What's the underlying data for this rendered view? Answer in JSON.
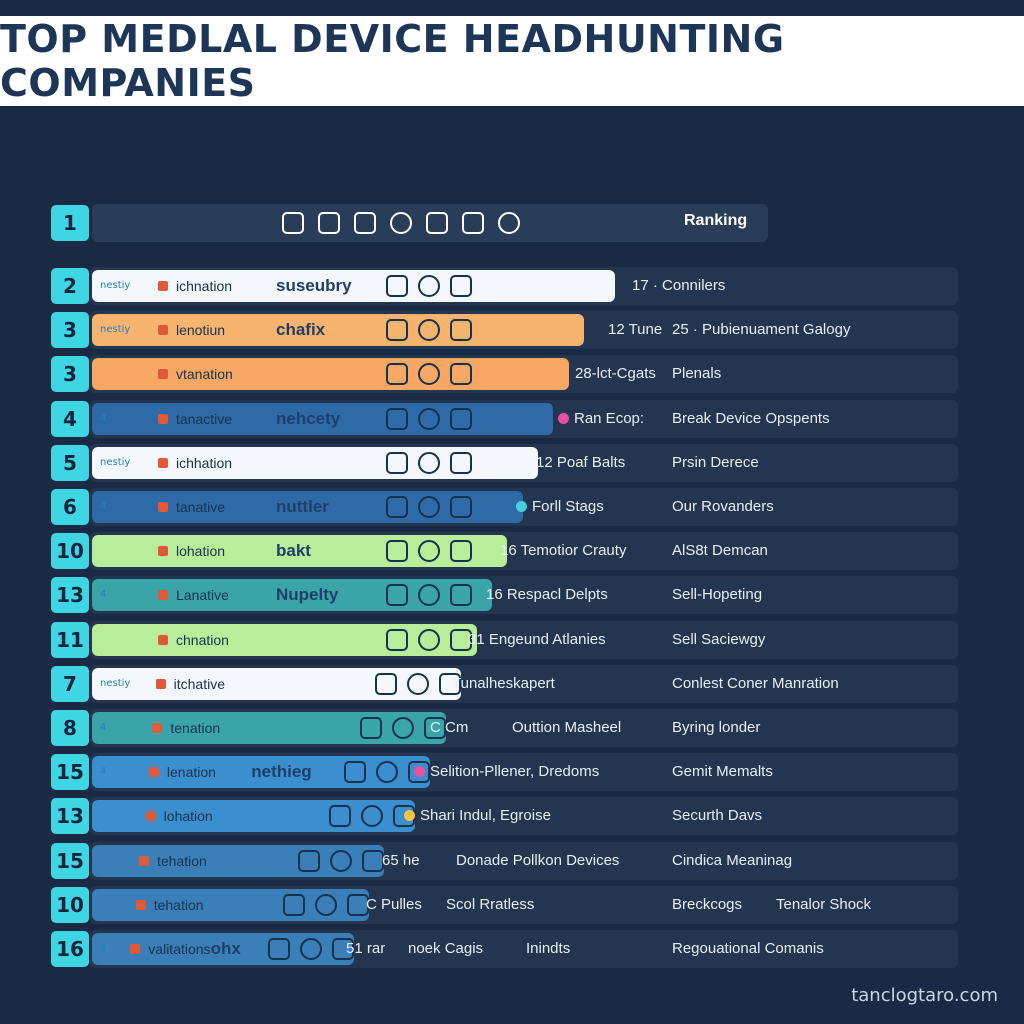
{
  "title": "Top Medlal Device Headhunting Companies",
  "header_row": {
    "rank": "1",
    "label": "Ranking"
  },
  "watermark": "tanclogtaro.com",
  "chart_data": {
    "type": "bar",
    "title": "Top Medlal Device Headhunting Companies",
    "series_colors": {
      "white": "#f4f7fb",
      "orange": "#f7b46f",
      "navy": "#2f6aa8",
      "green": "#b8ee9a",
      "teal": "#3aa5a8",
      "blue": "#3b8fcf",
      "lightblue": "#3b7fb8"
    },
    "rows": [
      {
        "rank": "2",
        "brand": "nestiy",
        "label1": "ichnation",
        "label2": "suseubry",
        "color": "#f4f7fb",
        "value": 17,
        "texts": [
          "17 · Connilers"
        ]
      },
      {
        "rank": "3",
        "brand": "nestiy",
        "label1": "lenotiun",
        "label2": "chafix",
        "color": "#f7b46f",
        "value": 16,
        "texts": [
          "12 Tune",
          "25 · Pubienuament Galogy"
        ]
      },
      {
        "rank": "3",
        "brand": "",
        "label1": "vtanation",
        "label2": "",
        "color": "#f7a864",
        "value": 15.5,
        "texts": [
          "28-lct-Cgats",
          "Plenals"
        ]
      },
      {
        "rank": "4",
        "brand": "4",
        "label1": "tanactive",
        "label2": "nehcety",
        "color": "#2f6aa8",
        "value": 15,
        "texts": [
          "Ran Ecop:",
          "Break Device Opspents"
        ]
      },
      {
        "rank": "5",
        "brand": "nestiy",
        "label1": "ichhation",
        "label2": "",
        "color": "#f4f7fb",
        "value": 14.5,
        "texts": [
          "12 Poaf Balts",
          "Prsin Derece"
        ]
      },
      {
        "rank": "6",
        "brand": "4",
        "label1": "tanative",
        "label2": "nuttler",
        "color": "#2f6aa8",
        "value": 14,
        "texts": [
          "Forll Stags",
          "Our Rovanders"
        ]
      },
      {
        "rank": "10",
        "brand": "",
        "label1": "lohation",
        "label2": "bakt",
        "color": "#b8ee9a",
        "value": 13.5,
        "texts": [
          "16 Temotior Crauty",
          "AlS8t Demcan"
        ]
      },
      {
        "rank": "13",
        "brand": "4",
        "label1": "Lanative",
        "label2": "Nupelty",
        "color": "#3aa5a8",
        "value": 13,
        "texts": [
          "16 Respacl Delpts",
          "Sell-Hopeting"
        ]
      },
      {
        "rank": "11",
        "brand": "",
        "label1": "chnation",
        "label2": "",
        "color": "#b8ee9a",
        "value": 12.5,
        "texts": [
          "31 Engeund Atlanies",
          "Sell Saciewgy"
        ]
      },
      {
        "rank": "7",
        "brand": "nestiy",
        "label1": "itchative",
        "label2": "",
        "color": "#f4f7fb",
        "value": 12,
        "texts": [
          "Tunalheskapert",
          "Conlest Coner Manration"
        ]
      },
      {
        "rank": "8",
        "brand": "4",
        "label1": "tenation",
        "label2": "",
        "color": "#3aa5a8",
        "value": 11.5,
        "texts": [
          "C Cm",
          "Outtion Masheel",
          "Byring londer"
        ]
      },
      {
        "rank": "15",
        "brand": "4",
        "label1": "lenation",
        "label2": "nethieg",
        "color": "#3b8fcf",
        "value": 11,
        "texts": [
          "Selition-Pllener, Dredoms",
          "Gemit Memalts"
        ]
      },
      {
        "rank": "13",
        "brand": "",
        "label1": "lohation",
        "label2": "",
        "color": "#3b8fcf",
        "value": 10.5,
        "texts": [
          "Shari Indul, Egroise",
          "Securth Davs"
        ]
      },
      {
        "rank": "15",
        "brand": "",
        "label1": "tehation",
        "label2": "",
        "color": "#3b7fb8",
        "value": 9.5,
        "texts": [
          "65 he",
          "Donade Pollkon Devices",
          "Cindica Meaninag"
        ]
      },
      {
        "rank": "10",
        "brand": "",
        "label1": "tehation",
        "label2": "",
        "color": "#3b7fb8",
        "value": 9,
        "texts": [
          "C Pulles",
          "Scol Rratless",
          "Breckcogs",
          "Tenalor Shock"
        ]
      },
      {
        "rank": "16",
        "brand": "4",
        "label1": "valitations",
        "label2": "ohx",
        "color": "#3b7fb8",
        "value": 8.5,
        "texts": [
          "51 rar",
          "noek Cagis",
          "Inindts",
          "Regouational Comanis"
        ]
      }
    ]
  }
}
